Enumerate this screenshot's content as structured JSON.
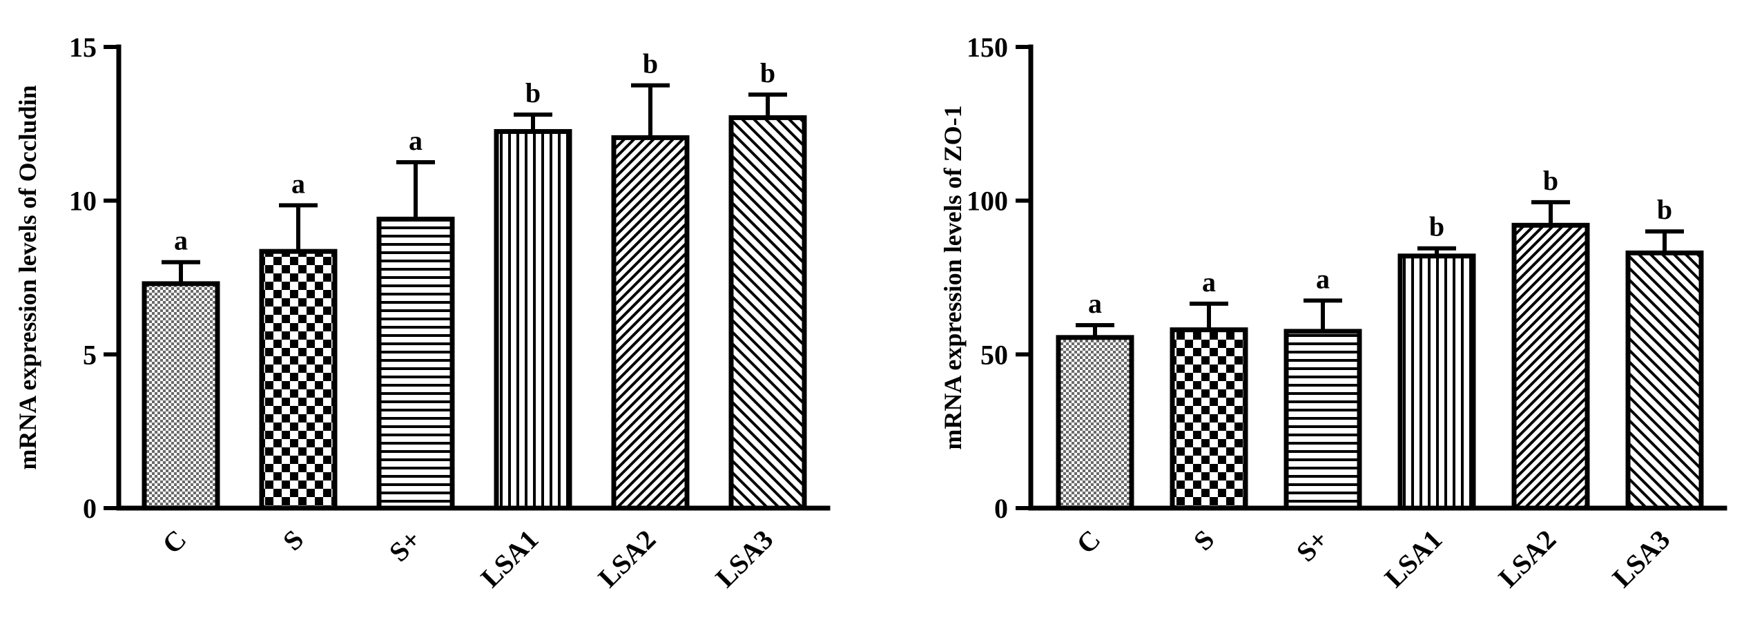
{
  "chart_data": [
    {
      "type": "bar",
      "title": "",
      "xlabel": "",
      "ylabel": "mRNA expression levels of Occludin",
      "ylim": [
        0,
        15
      ],
      "yticks": [
        0,
        5,
        10,
        15
      ],
      "grid": false,
      "categories": [
        "C",
        "S",
        "S+",
        "LSA1",
        "LSA2",
        "LSA3"
      ],
      "values": [
        7.3,
        8.35,
        9.4,
        12.25,
        12.05,
        12.7
      ],
      "error": [
        0.7,
        1.5,
        1.85,
        0.55,
        1.7,
        0.75
      ],
      "labels": [
        "a",
        "a",
        "a",
        "b",
        "b",
        "b"
      ],
      "patterns": [
        "fine-dots",
        "checker",
        "horizontal-lines",
        "vertical-lines",
        "diagonal-dense",
        "diagonal-wide"
      ]
    },
    {
      "type": "bar",
      "title": "",
      "xlabel": "",
      "ylabel": "mRNA expression levels of ZO-1",
      "ylim": [
        0,
        150
      ],
      "yticks": [
        0,
        50,
        100,
        150
      ],
      "grid": false,
      "categories": [
        "C",
        "S",
        "S+",
        "LSA1",
        "LSA2",
        "LSA3"
      ],
      "values": [
        55.5,
        58,
        57.5,
        82,
        92,
        83
      ],
      "error": [
        4,
        8.5,
        10,
        2.5,
        7.5,
        7
      ],
      "labels": [
        "a",
        "a",
        "a",
        "b",
        "b",
        "b"
      ],
      "patterns": [
        "fine-dots",
        "checker",
        "horizontal-lines",
        "vertical-lines",
        "diagonal-dense",
        "diagonal-wide"
      ]
    }
  ]
}
